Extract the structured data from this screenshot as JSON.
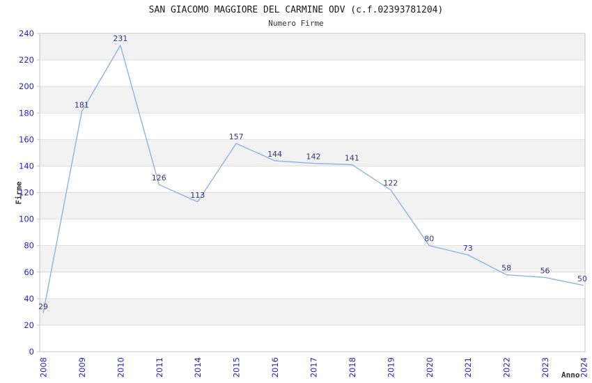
{
  "chart_data": {
    "type": "line",
    "title": "SAN GIACOMO MAGGIORE DEL CARMINE ODV (c.f.02393781204)",
    "subtitle": "Numero Firme",
    "xlabel": "Anno",
    "ylabel": "Firme",
    "categories": [
      "2008",
      "2009",
      "2010",
      "2011",
      "2014",
      "2015",
      "2016",
      "2017",
      "2018",
      "2019",
      "2020",
      "2021",
      "2022",
      "2023",
      "2024"
    ],
    "series": [
      {
        "name": "Numero Firme",
        "values": [
          29,
          181,
          231,
          126,
          113,
          157,
          144,
          142,
          141,
          122,
          80,
          73,
          58,
          56,
          50
        ]
      }
    ],
    "ylim": [
      0,
      240
    ],
    "ytick_step": 20,
    "grid": "horizontal gridlines with alternating shaded bands",
    "legend": "none",
    "colors": {
      "line": "#8ab4e8",
      "point_label": "#333380",
      "tick_label": "#2222cc",
      "band": "#f2f2f2",
      "gridline": "#dddddd",
      "border": "#c6c6c6",
      "title": "#1a1a1a",
      "axis_title": "#333333"
    }
  }
}
